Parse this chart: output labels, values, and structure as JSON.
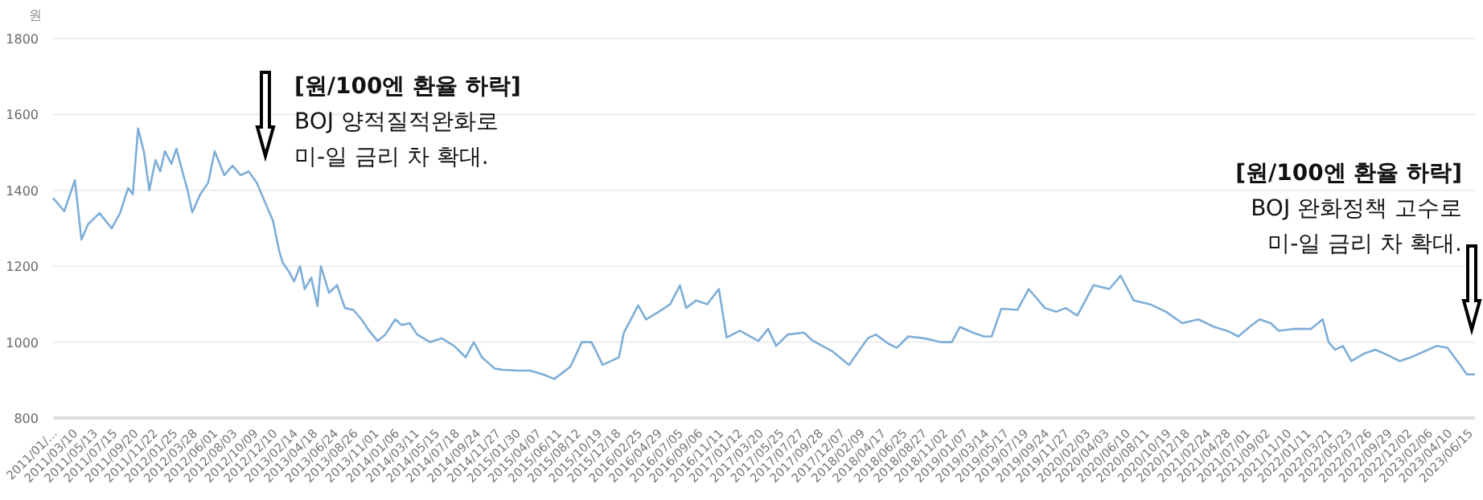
{
  "chart_data": {
    "type": "line",
    "ylabel": "원",
    "x": [
      "2011-01-03",
      "2011-02-08",
      "2011-03-14",
      "2011-04-04",
      "2011-04-25",
      "2011-06-01",
      "2011-07-10",
      "2011-08-06",
      "2011-09-01",
      "2011-09-16",
      "2011-10-03",
      "2011-10-22",
      "2011-11-08",
      "2011-11-28",
      "2011-12-13",
      "2011-12-28",
      "2012-01-18",
      "2012-02-03",
      "2012-02-19",
      "2012-03-10",
      "2012-03-25",
      "2012-04-20",
      "2012-05-15",
      "2012-06-05",
      "2012-07-06",
      "2012-08-01",
      "2012-08-27",
      "2012-09-22",
      "2012-10-18",
      "2012-11-13",
      "2012-12-09",
      "2012-12-30",
      "2013-01-09",
      "2013-01-30",
      "2013-02-15",
      "2013-03-06",
      "2013-03-21",
      "2013-04-11",
      "2013-05-01",
      "2013-05-12",
      "2013-06-07",
      "2013-07-03",
      "2013-07-28",
      "2013-08-24",
      "2013-09-19",
      "2013-10-14",
      "2013-11-10",
      "2013-12-05",
      "2014-01-06",
      "2014-01-26",
      "2014-02-21",
      "2014-03-17",
      "2014-04-28",
      "2014-06-04",
      "2014-07-14",
      "2014-08-20",
      "2014-09-15",
      "2014-10-11",
      "2014-11-22",
      "2014-12-17",
      "2015-02-03",
      "2015-03-14",
      "2015-04-25",
      "2015-06-01",
      "2015-07-22",
      "2015-08-28",
      "2015-09-28",
      "2015-11-03",
      "2015-12-25",
      "2016-01-10",
      "2016-02-25",
      "2016-03-21",
      "2016-05-01",
      "2016-06-07",
      "2016-07-08",
      "2016-07-28",
      "2016-08-29",
      "2016-10-04",
      "2016-11-10",
      "2016-12-05",
      "2017-01-16",
      "2017-03-17",
      "2017-04-17",
      "2017-05-13",
      "2017-06-19",
      "2017-08-10",
      "2017-09-05",
      "2017-11-11",
      "2018-01-02",
      "2018-03-03",
      "2018-03-29",
      "2018-05-10",
      "2018-06-05",
      "2018-07-11",
      "2018-09-01",
      "2018-10-23",
      "2018-11-28",
      "2018-12-24",
      "2019-02-04",
      "2019-03-10",
      "2019-04-05",
      "2019-05-06",
      "2019-06-27",
      "2019-08-02",
      "2019-09-23",
      "2019-10-29",
      "2019-11-29",
      "2020-01-05",
      "2020-02-26",
      "2020-04-17",
      "2020-05-23",
      "2020-07-04",
      "2020-08-25",
      "2020-10-16",
      "2020-12-07",
      "2021-01-28",
      "2021-03-20",
      "2021-04-30",
      "2021-06-05",
      "2021-07-11",
      "2021-08-12",
      "2021-09-17",
      "2021-10-13",
      "2021-12-04",
      "2022-01-25",
      "2022-03-03",
      "2022-03-22",
      "2022-04-12",
      "2022-05-07",
      "2022-06-03",
      "2022-07-14",
      "2022-08-19",
      "2022-09-30",
      "2022-11-05",
      "2022-12-11",
      "2023-01-22",
      "2023-03-03",
      "2023-04-08",
      "2023-05-14",
      "2023-06-09",
      "2023-07-05"
    ],
    "series": [
      {
        "color": "#7eaed8",
        "values": [
          1380,
          1345,
          1427,
          1270,
          1310,
          1340,
          1300,
          1340,
          1406,
          1390,
          1563,
          1500,
          1400,
          1480,
          1450,
          1503,
          1470,
          1510,
          1460,
          1400,
          1342,
          1390,
          1420,
          1503,
          1440,
          1465,
          1440,
          1450,
          1420,
          1370,
          1320,
          1237,
          1210,
          1185,
          1160,
          1200,
          1140,
          1170,
          1095,
          1200,
          1130,
          1150,
          1090,
          1085,
          1060,
          1030,
          1003,
          1020,
          1060,
          1045,
          1050,
          1020,
          1000,
          1010,
          990,
          960,
          1000,
          960,
          930,
          927,
          925,
          925,
          915,
          903,
          935,
          1000,
          1000,
          940,
          960,
          1025,
          1097,
          1060,
          1080,
          1100,
          1150,
          1090,
          1110,
          1100,
          1140,
          1012,
          1030,
          1003,
          1035,
          990,
          1020,
          1025,
          1005,
          975,
          940,
          1010,
          1020,
          995,
          985,
          1015,
          1010,
          1000,
          1000,
          1040,
          1025,
          1015,
          1015,
          1088,
          1085,
          1140,
          1090,
          1080,
          1090,
          1070,
          1150,
          1140,
          1175,
          1110,
          1100,
          1080,
          1050,
          1060,
          1040,
          1030,
          1015,
          1040,
          1060,
          1050,
          1030,
          1035,
          1035,
          1060,
          1000,
          980,
          990,
          950,
          970,
          980,
          965,
          950,
          960,
          975,
          990,
          985,
          945,
          915,
          915
        ]
      }
    ],
    "xlim": [
      "2011-01-03",
      "2023-07-05"
    ],
    "xticks": [
      {
        "value": "2011-01-03",
        "label": "2011/01/..."
      },
      {
        "value": "2011-03-10",
        "label": "2011/03/10"
      },
      {
        "value": "2011-05-13",
        "label": "2011/05/13"
      },
      {
        "value": "2011-07-15",
        "label": "2011/07/15"
      },
      {
        "value": "2011-09-20",
        "label": "2011/09/20"
      },
      {
        "value": "2011-11-22",
        "label": "2011/11/22"
      },
      {
        "value": "2012-01-25",
        "label": "2012/01/25"
      },
      {
        "value": "2012-03-28",
        "label": "2012/03/28"
      },
      {
        "value": "2012-06-01",
        "label": "2012/06/01"
      },
      {
        "value": "2012-08-03",
        "label": "2012/08/03"
      },
      {
        "value": "2012-10-09",
        "label": "2012/10/09"
      },
      {
        "value": "2012-12-10",
        "label": "2012/12/10"
      },
      {
        "value": "2013-02-14",
        "label": "2013/02/14"
      },
      {
        "value": "2013-04-18",
        "label": "2013/04/18"
      },
      {
        "value": "2013-06-24",
        "label": "2013/06/24"
      },
      {
        "value": "2013-08-26",
        "label": "2013/08/26"
      },
      {
        "value": "2013-11-01",
        "label": "2013/11/01"
      },
      {
        "value": "2014-01-06",
        "label": "2014/01/06"
      },
      {
        "value": "2014-03-11",
        "label": "2014/03/11"
      },
      {
        "value": "2014-05-15",
        "label": "2014/05/15"
      },
      {
        "value": "2014-07-18",
        "label": "2014/07/18"
      },
      {
        "value": "2014-09-24",
        "label": "2014/09/24"
      },
      {
        "value": "2014-11-27",
        "label": "2014/11/27"
      },
      {
        "value": "2015-01-30",
        "label": "2015/01/30"
      },
      {
        "value": "2015-04-07",
        "label": "2015/04/07"
      },
      {
        "value": "2015-06-11",
        "label": "2015/06/11"
      },
      {
        "value": "2015-08-12",
        "label": "2015/08/12"
      },
      {
        "value": "2015-10-19",
        "label": "2015/10/19"
      },
      {
        "value": "2015-12-18",
        "label": "2015/12/18"
      },
      {
        "value": "2016-02-25",
        "label": "2016/02/25"
      },
      {
        "value": "2016-04-29",
        "label": "2016/04/29"
      },
      {
        "value": "2016-07-05",
        "label": "2016/07/05"
      },
      {
        "value": "2016-09-06",
        "label": "2016/09/06"
      },
      {
        "value": "2016-11-11",
        "label": "2016/11/11"
      },
      {
        "value": "2017-01-12",
        "label": "2017/01/12"
      },
      {
        "value": "2017-03-20",
        "label": "2017/03/20"
      },
      {
        "value": "2017-05-25",
        "label": "2017/05/25"
      },
      {
        "value": "2017-07-27",
        "label": "2017/07/27"
      },
      {
        "value": "2017-09-28",
        "label": "2017/09/28"
      },
      {
        "value": "2017-12-07",
        "label": "2017/12/07"
      },
      {
        "value": "2018-02-09",
        "label": "2018/02/09"
      },
      {
        "value": "2018-04-17",
        "label": "2018/04/17"
      },
      {
        "value": "2018-06-25",
        "label": "2018/06/25"
      },
      {
        "value": "2018-08-27",
        "label": "2018/08/27"
      },
      {
        "value": "2018-11-02",
        "label": "2018/11/02"
      },
      {
        "value": "2019-01-07",
        "label": "2019/01/07"
      },
      {
        "value": "2019-03-14",
        "label": "2019/03/14"
      },
      {
        "value": "2019-05-17",
        "label": "2019/05/17"
      },
      {
        "value": "2019-07-19",
        "label": "2019/07/19"
      },
      {
        "value": "2019-09-24",
        "label": "2019/09/24"
      },
      {
        "value": "2019-11-27",
        "label": "2019/11/27"
      },
      {
        "value": "2020-02-03",
        "label": "2020/02/03"
      },
      {
        "value": "2020-04-03",
        "label": "2020/04/03"
      },
      {
        "value": "2020-06-10",
        "label": "2020/06/10"
      },
      {
        "value": "2020-08-11",
        "label": "2020/08/11"
      },
      {
        "value": "2020-10-19",
        "label": "2020/10/19"
      },
      {
        "value": "2020-12-18",
        "label": "2020/12/18"
      },
      {
        "value": "2021-02-24",
        "label": "2021/02/24"
      },
      {
        "value": "2021-04-28",
        "label": "2021/04/28"
      },
      {
        "value": "2021-07-01",
        "label": "2021/07/01"
      },
      {
        "value": "2021-09-02",
        "label": "2021/09/02"
      },
      {
        "value": "2021-11-10",
        "label": "2021/11/10"
      },
      {
        "value": "2022-01-11",
        "label": "2022/01/11"
      },
      {
        "value": "2022-03-21",
        "label": "2022/03/21"
      },
      {
        "value": "2022-05-23",
        "label": "2022/05/23"
      },
      {
        "value": "2022-07-26",
        "label": "2022/07/26"
      },
      {
        "value": "2022-09-29",
        "label": "2022/09/29"
      },
      {
        "value": "2022-12-02",
        "label": "2022/12/02"
      },
      {
        "value": "2023-02-06",
        "label": "2023/02/06"
      },
      {
        "value": "2023-04-10",
        "label": "2023/04/10"
      },
      {
        "value": "2023-06-15",
        "label": "2023/06/15"
      }
    ],
    "ylim": [
      800,
      1800
    ],
    "yticks": [
      800,
      1000,
      1200,
      1400,
      1600,
      1800
    ],
    "grid": "y",
    "annotations": [
      "[원/100엔 환율 하락]\nBOJ 양적질적완화로\n미-일 금리 차 확대.",
      "[원/100엔 환율 하락]\nBOJ 완화정책 고수로\n미-일 금리 차 확대."
    ]
  }
}
